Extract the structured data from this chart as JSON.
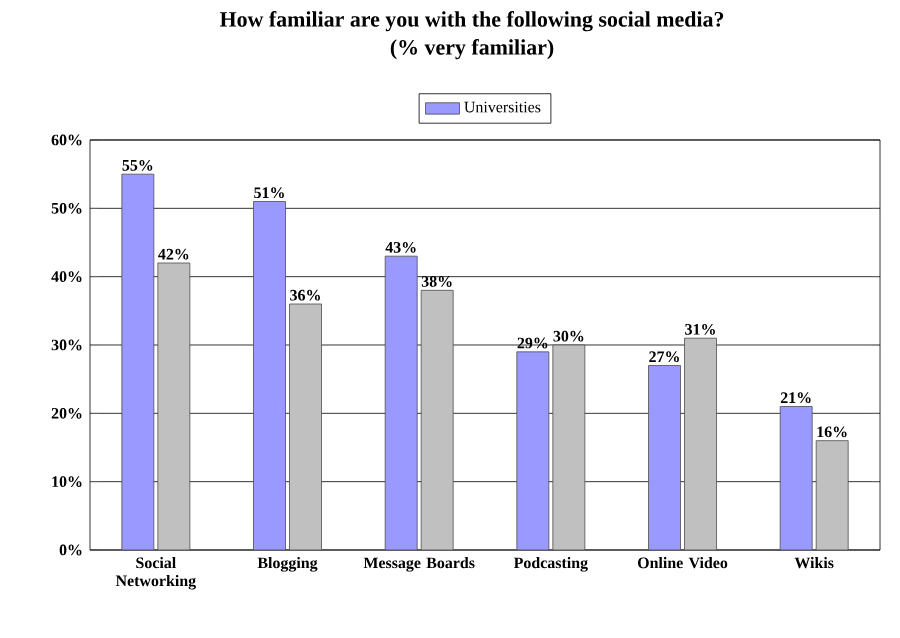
{
  "chart_data": {
    "type": "bar",
    "title": "How familiar are you with the following social media?",
    "subtitle": "(% very familiar)",
    "categories": [
      "Social Networking",
      "Blogging",
      "Message Boards",
      "Podcasting",
      "Online Video",
      "Wikis"
    ],
    "series": [
      {
        "name": "Universities",
        "color": "#9999ff",
        "values": [
          55,
          51,
          43,
          29,
          27,
          21
        ],
        "value_labels": [
          "55%",
          "51%",
          "43%",
          "29%",
          "27%",
          "21%"
        ]
      },
      {
        "color": "#c0c0c0",
        "values": [
          42,
          36,
          38,
          30,
          31,
          16
        ],
        "value_labels": [
          "42%",
          "36%",
          "38%",
          "30%",
          "31%",
          "16%"
        ]
      }
    ],
    "ylim": [
      0,
      60
    ],
    "yticks": [
      {
        "value": 0,
        "label": "0%"
      },
      {
        "value": 10,
        "label": "10%"
      },
      {
        "value": 20,
        "label": "20%"
      },
      {
        "value": 30,
        "label": "30%"
      },
      {
        "value": 40,
        "label": "40%"
      },
      {
        "value": 50,
        "label": "50%"
      },
      {
        "value": 60,
        "label": "60%"
      }
    ],
    "grid": "y",
    "legend": "top"
  }
}
